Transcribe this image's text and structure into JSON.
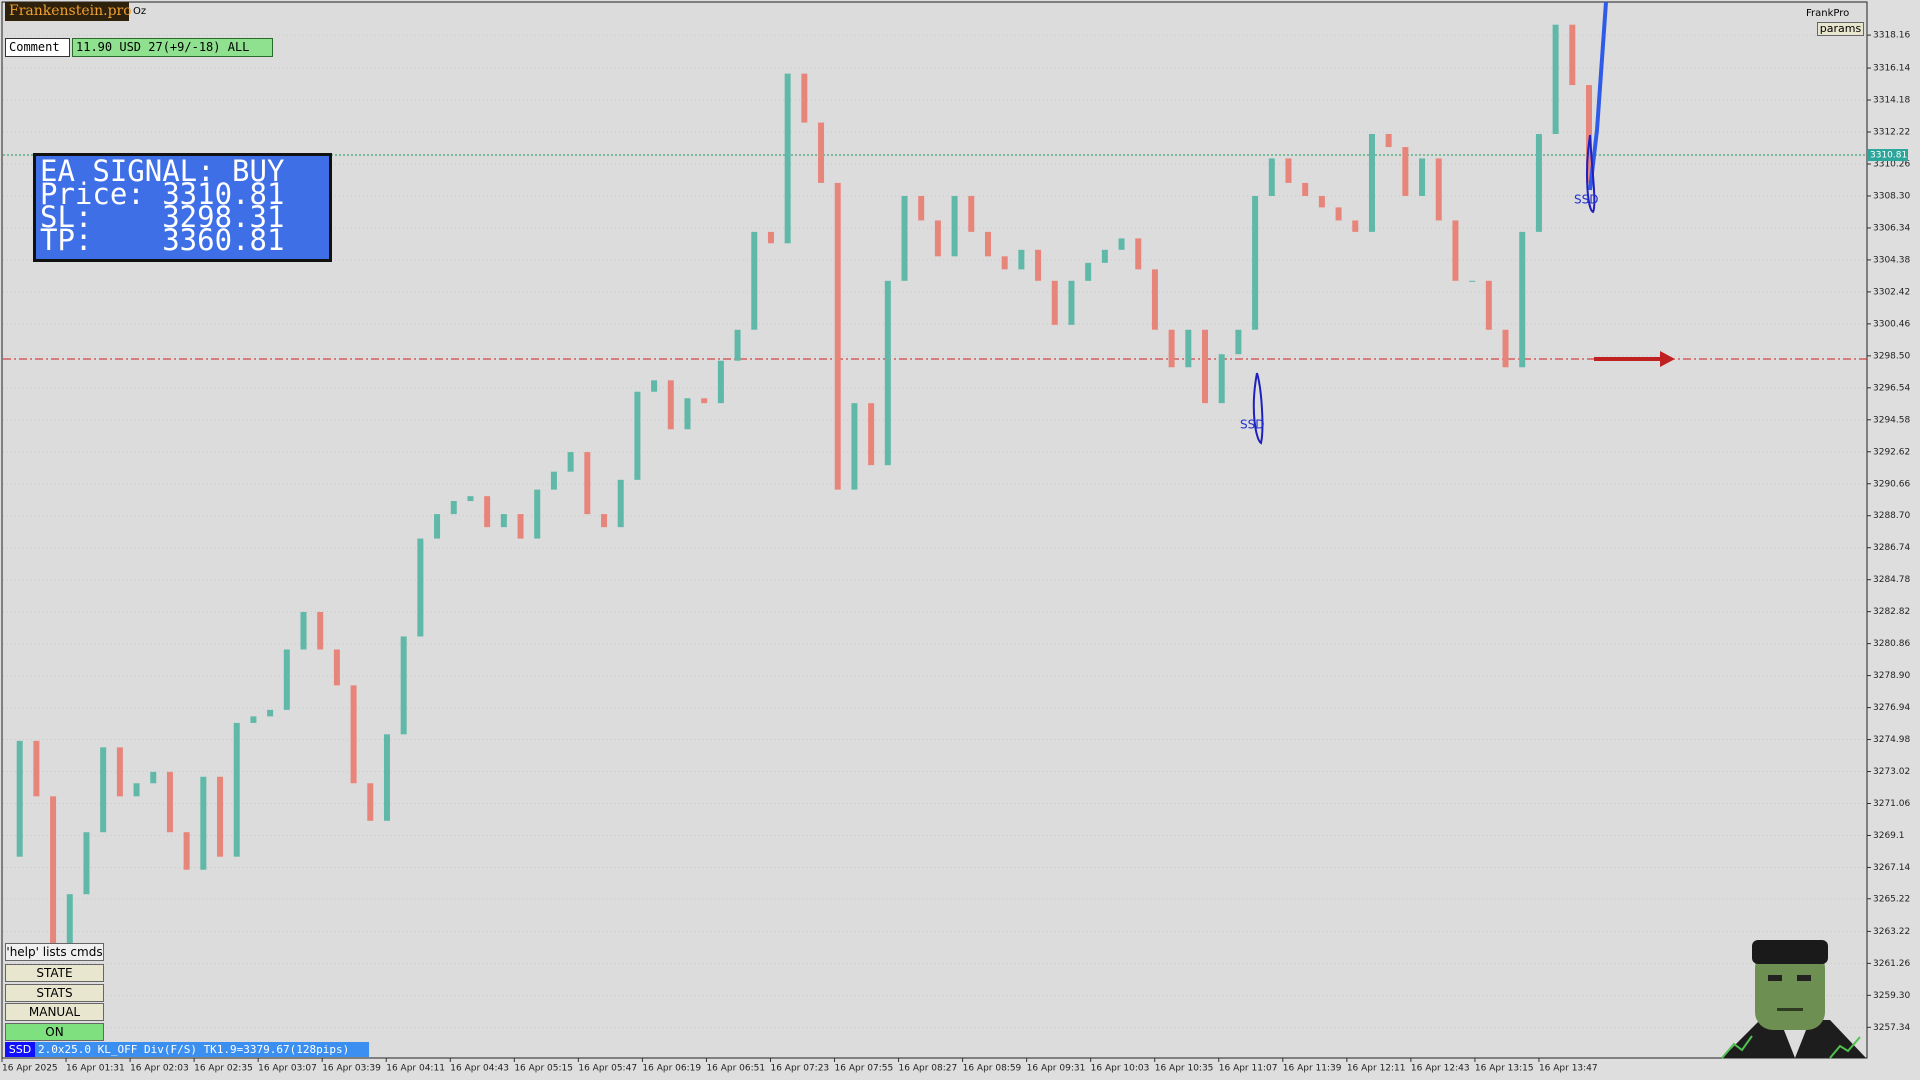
{
  "header": {
    "logo": "Frankenstein.pro",
    "symbol": "Oz",
    "comment_label": "Comment",
    "comment_value": "11.90 USD 27(+9/-18) ALL",
    "brand": "FrankPro",
    "params": "params"
  },
  "signal_panel": {
    "lines": [
      "EA SIGNAL: BUY",
      "Price: 3310.81",
      "SL:    3298.31",
      "TP:    3360.81"
    ]
  },
  "controls": {
    "help": "'help' lists cmds",
    "buttons": [
      "STATE",
      "STATS",
      "MANUAL",
      "ON"
    ]
  },
  "status_bar": {
    "tag": "SSD",
    "text": "2.0x25.0 KL_OFF Div(F/S) TK1.9=3379.67(128pips)"
  },
  "chart_data": {
    "type": "candlestick",
    "time_labels": [
      "16 Apr 2025",
      "16 Apr 01:31",
      "16 Apr 02:03",
      "16 Apr 02:35",
      "16 Apr 03:07",
      "16 Apr 03:39",
      "16 Apr 04:11",
      "16 Apr 04:43",
      "16 Apr 05:15",
      "16 Apr 05:47",
      "16 Apr 06:19",
      "16 Apr 06:51",
      "16 Apr 07:23",
      "16 Apr 07:55",
      "16 Apr 08:27",
      "16 Apr 08:59",
      "16 Apr 09:31",
      "16 Apr 10:03",
      "16 Apr 10:35",
      "16 Apr 11:07",
      "16 Apr 11:39",
      "16 Apr 12:11",
      "16 Apr 12:43",
      "16 Apr 13:15",
      "16 Apr 13:47"
    ],
    "values": [
      3267.8,
      3274.9,
      3271.5,
      3262.5,
      3265.5,
      3269.3,
      3274.5,
      3271.5,
      3272.3,
      3273,
      3269.3,
      3267,
      3272.7,
      3267.8,
      3276,
      3276.4,
      3276.8,
      3280.5,
      3282.8,
      3280.5,
      3278.3,
      3272.3,
      3270,
      3275.3,
      3281.3,
      3287.3,
      3288.8,
      3289.6,
      3289.9,
      3288,
      3288.8,
      3287.3,
      3290.3,
      3291.4,
      3292.6,
      3288.8,
      3288,
      3290.9,
      3296.3,
      3297,
      3294,
      3295.9,
      3295.6,
      3298.2,
      3300.1,
      3306.1,
      3305.4,
      3315.8,
      3312.8,
      3309.1,
      3290.3,
      3295.6,
      3291.8,
      3303.1,
      3308.3,
      3306.8,
      3304.6,
      3308.3,
      3306.1,
      3304.6,
      3303.8,
      3305,
      3303.1,
      3300.4,
      3303.1,
      3304.2,
      3305,
      3305.7,
      3303.8,
      3300.1,
      3297.8,
      3300.1,
      3295.6,
      3298.6,
      3300.1,
      3308.3,
      3310.6,
      3309.1,
      3308.3,
      3307.6,
      3306.8,
      3306.1,
      3312.1,
      3311.3,
      3308.3,
      3310.6,
      3306.8,
      3303.1,
      3303.1,
      3300.1,
      3297.8,
      3306.1,
      3312.1,
      3318.8,
      3315.1,
      3309.1
    ],
    "up_color": "#5fb8a8",
    "down_color": "#e8857a",
    "ylim": [
      3255.46,
      3320.19
    ],
    "yticks": [
      3318.16,
      3316.14,
      3314.18,
      3312.22,
      3310.26,
      {
        "value": 3308.3,
        "label": "3308.30"
      },
      3306.34,
      3304.38,
      3302.42,
      3300.46,
      {
        "value": 3298.5,
        "label": "3298.50"
      },
      3296.54,
      3294.58,
      3292.62,
      3290.66,
      {
        "value": 3288.7,
        "label": "3288.70"
      },
      3286.74,
      3284.78,
      3282.82,
      3280.86,
      {
        "value": 3278.9,
        "label": "3278.90"
      },
      3276.94,
      3274.98,
      3273.02,
      3271.06,
      3269.1,
      3267.14,
      3265.22,
      3263.22,
      3261.26,
      {
        "value": 3259.3,
        "label": "3259.30"
      },
      3257.34
    ],
    "price_line": 3310.81,
    "stop_line": 3298.31,
    "annotations": [
      "SSD",
      "SSD"
    ],
    "grid": true
  }
}
